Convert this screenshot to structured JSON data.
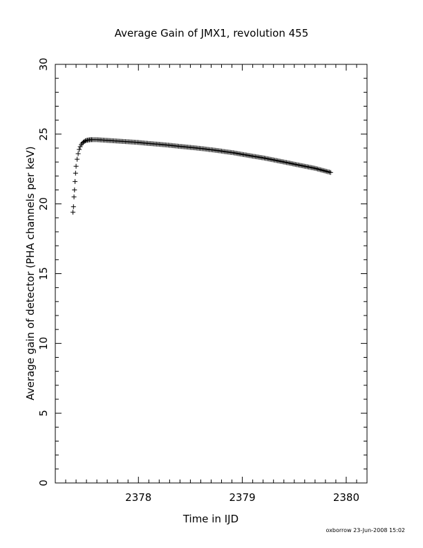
{
  "chart_data": {
    "type": "scatter",
    "title": "Average Gain of JMX1, revolution 455",
    "xlabel": "Time in IJD",
    "ylabel": "Average gain of detector (PHA channels per keV)",
    "xlim": [
      2377.2,
      2380.2
    ],
    "ylim": [
      0,
      30
    ],
    "x_ticks": [
      "2378",
      "2379",
      "2380"
    ],
    "y_ticks": [
      "0",
      "5",
      "10",
      "15",
      "20",
      "25",
      "30"
    ],
    "x_tick_values": [
      2378,
      2379,
      2380
    ],
    "y_tick_values": [
      0,
      5,
      10,
      15,
      20,
      25,
      30
    ],
    "marker": "plus",
    "grid": false,
    "series": [
      {
        "x": [
          2377.37,
          2377.375,
          2377.38,
          2377.385,
          2377.39,
          2377.395,
          2377.4,
          2377.41,
          2377.42,
          2377.43,
          2377.44,
          2377.45,
          2377.46,
          2377.47,
          2377.48,
          2377.49,
          2377.5,
          2377.52,
          2377.54,
          2377.56,
          2377.6,
          2377.7,
          2377.8,
          2377.9,
          2378.0,
          2378.1,
          2378.2,
          2378.3,
          2378.4,
          2378.5,
          2378.6,
          2378.7,
          2378.8,
          2378.9,
          2379.0,
          2379.1,
          2379.2,
          2379.3,
          2379.4,
          2379.5,
          2379.6,
          2379.7,
          2379.8,
          2379.85
        ],
        "y": [
          19.4,
          19.8,
          20.5,
          21.0,
          21.6,
          22.2,
          22.7,
          23.2,
          23.6,
          23.9,
          24.1,
          24.25,
          24.35,
          24.42,
          24.48,
          24.52,
          24.55,
          24.58,
          24.6,
          24.6,
          24.6,
          24.55,
          24.5,
          24.45,
          24.4,
          24.33,
          24.27,
          24.2,
          24.12,
          24.05,
          23.97,
          23.88,
          23.78,
          23.68,
          23.55,
          23.42,
          23.3,
          23.15,
          23.0,
          22.85,
          22.7,
          22.55,
          22.35,
          22.25
        ]
      }
    ]
  },
  "footer": {
    "credit": "oxborrow 23-Jun-2008 15:02"
  }
}
